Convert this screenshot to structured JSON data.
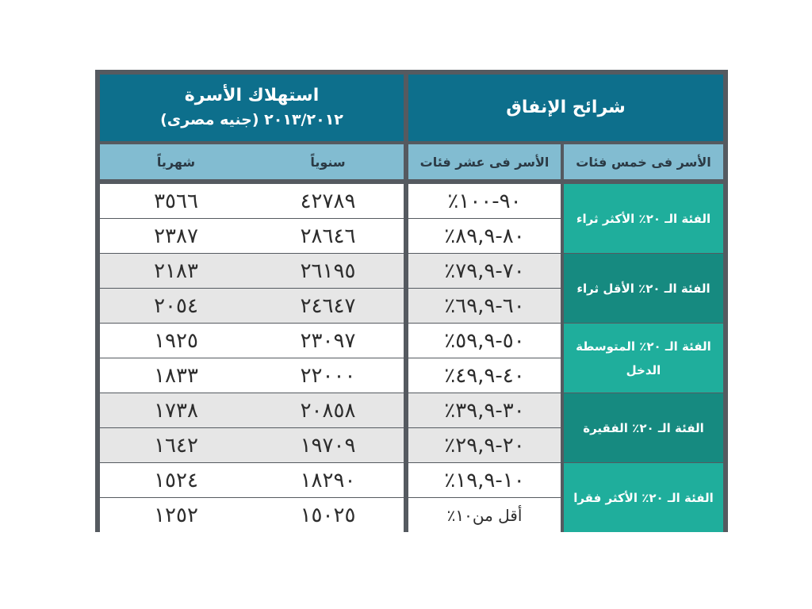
{
  "header": {
    "consumption_title": "استهلاك الأسرة",
    "consumption_subtitle": "٢٠١٣/٢٠١٢ (جنيه مصرى)",
    "spending_title": "شرائح الإنفاق"
  },
  "subheader": {
    "monthly": "شهرياً",
    "yearly": "سنوياً",
    "deciles": "الأسر فى عشر فئات",
    "quintiles": "الأسر فى خمس فئات"
  },
  "rows": [
    {
      "monthly": "٣٥٦٦",
      "yearly": "٤٢٧٨٩",
      "decile": "٩٠-١٠٠٪"
    },
    {
      "monthly": "٢٣٨٧",
      "yearly": "٢٨٦٤٦",
      "decile": "٨٠-٨٩,٩٪"
    },
    {
      "monthly": "٢١٨٣",
      "yearly": "٢٦١٩٥",
      "decile": "٧٠-٧٩,٩٪"
    },
    {
      "monthly": "٢٠٥٤",
      "yearly": "٢٤٦٤٧",
      "decile": "٦٠-٦٩,٩٪"
    },
    {
      "monthly": "١٩٢٥",
      "yearly": "٢٣٠٩٧",
      "decile": "٥٠-٥٩,٩٪"
    },
    {
      "monthly": "١٨٣٣",
      "yearly": "٢٢٠٠٠",
      "decile": "٤٠-٤٩,٩٪"
    },
    {
      "monthly": "١٧٣٨",
      "yearly": "٢٠٨٥٨",
      "decile": "٣٠-٣٩,٩٪"
    },
    {
      "monthly": "١٦٤٢",
      "yearly": "١٩٧٠٩",
      "decile": "٢٠-٢٩,٩٪"
    },
    {
      "monthly": "١٥٢٤",
      "yearly": "١٨٢٩٠",
      "decile": "١٠-١٩,٩٪"
    },
    {
      "monthly": "١٢٥٢",
      "yearly": "١٥٠٢٥",
      "decile": "أقل من١٠٪"
    }
  ],
  "groups": [
    {
      "label": "الفئة الـ ٢٠٪ الأكثر ثراء"
    },
    {
      "label": "الفئة الـ ٢٠٪ الأقل ثراء"
    },
    {
      "label": "الفئة الـ ٢٠٪ المتوسطة الدخل"
    },
    {
      "label": "الفئة الـ ٢٠٪ الفقيرة"
    },
    {
      "label": "الفئة الـ ٢٠٪ الأكثر فقرا"
    }
  ],
  "colors": {
    "header_bg": "#0d6f8c",
    "subheader_bg": "#82bcd1",
    "group_light": "#1fae9c",
    "group_dark": "#168a80",
    "row_white": "#ffffff",
    "row_gray": "#e6e6e6",
    "border": "#555a60"
  }
}
